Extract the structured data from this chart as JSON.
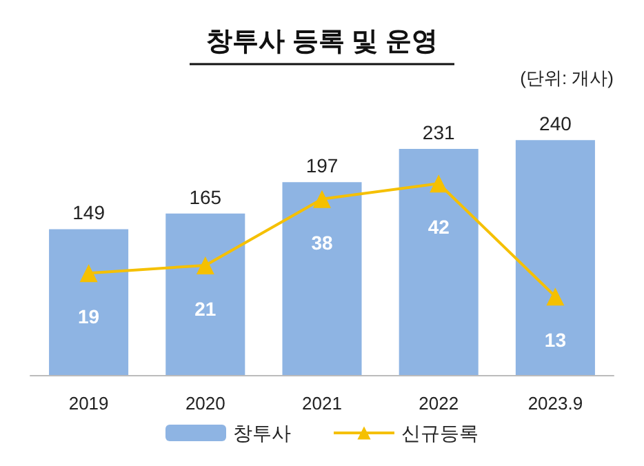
{
  "chart_data": {
    "type": "bar",
    "title": "창투사 등록 및 운영",
    "annotations": [
      "(단위: 개사)"
    ],
    "categories": [
      "2019",
      "2020",
      "2021",
      "2022",
      "2023.9"
    ],
    "series": [
      {
        "name": "창투사",
        "color": "#8eb4e3",
        "values": [
          149,
          165,
          197,
          231,
          240
        ]
      },
      {
        "name": "신규등록",
        "type": "line",
        "axis": "y2",
        "color": "#f5c000",
        "values": [
          19,
          21,
          38,
          42,
          13
        ]
      }
    ],
    "tick_labels": "x",
    "data_labels": true,
    "legend": "bottom",
    "marker": "triangle",
    "line_style": "solid",
    "grid": false
  }
}
